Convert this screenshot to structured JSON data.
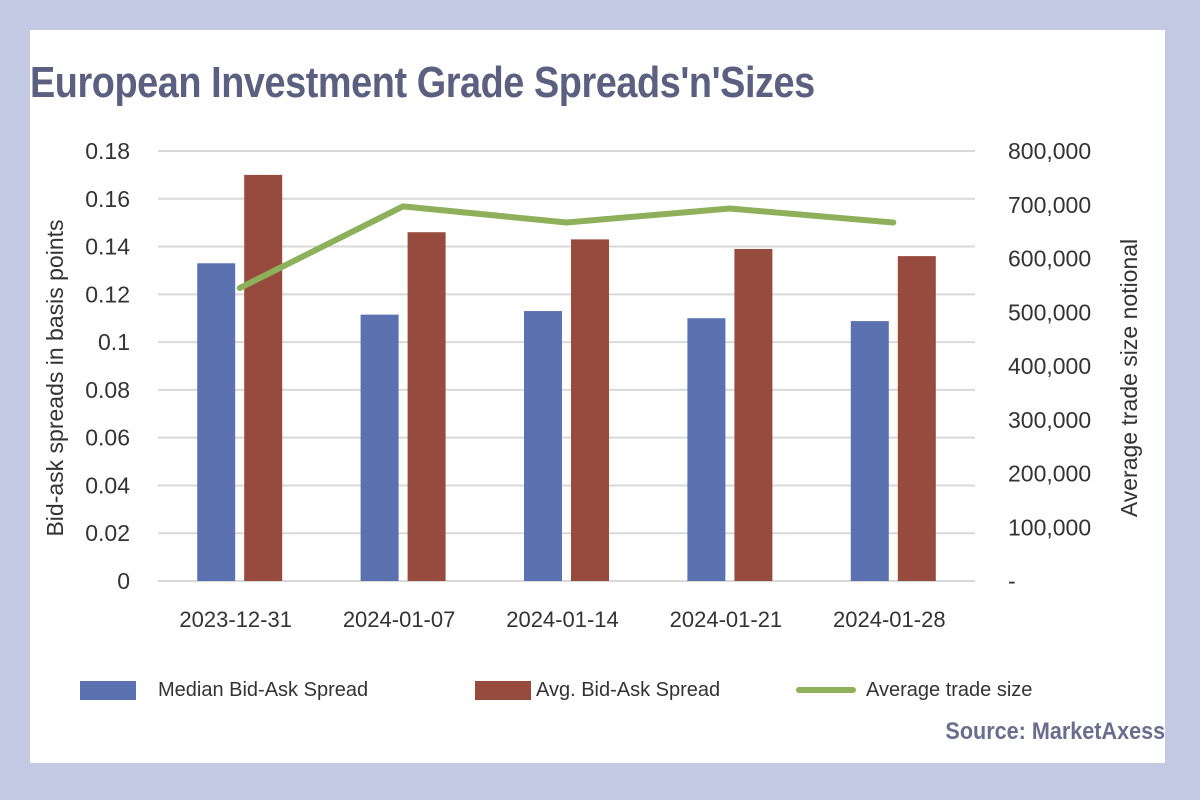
{
  "title": "European Investment Grade Spreads'n'Sizes",
  "source": "Source: MarketAxess",
  "chart_data": {
    "type": "bar",
    "categories": [
      "2023-12-31",
      "2024-01-07",
      "2024-01-14",
      "2024-01-21",
      "2024-01-28"
    ],
    "series": [
      {
        "name": "Median Bid-Ask Spread",
        "type": "bar",
        "axis": "left",
        "color": "#5b71b0",
        "values": [
          0.133,
          0.1115,
          0.113,
          0.11,
          0.1088
        ]
      },
      {
        "name": "Avg. Bid-Ask Spread",
        "type": "bar",
        "axis": "left",
        "color": "#974b3e",
        "values": [
          0.17,
          0.146,
          0.143,
          0.139,
          0.136
        ]
      },
      {
        "name": "Average trade size",
        "type": "line",
        "axis": "right",
        "color": "#8eb05a",
        "values": [
          545000,
          697000,
          667000,
          693000,
          667000
        ]
      }
    ],
    "ylabel": "Bid-ask spreads in basis points",
    "y2label": "Average trade size notional",
    "ylim": [
      0,
      0.18
    ],
    "y2lim": [
      0,
      800000
    ],
    "yticks": [
      "0",
      "0.02",
      "0.04",
      "0.06",
      "0.08",
      "0.1",
      "0.12",
      "0.14",
      "0.16",
      "0.18"
    ],
    "y2ticks": [
      "-",
      "100,000",
      "200,000",
      "300,000",
      "400,000",
      "500,000",
      "600,000",
      "700,000",
      "800,000"
    ],
    "grid": true,
    "legend": "bottom"
  }
}
